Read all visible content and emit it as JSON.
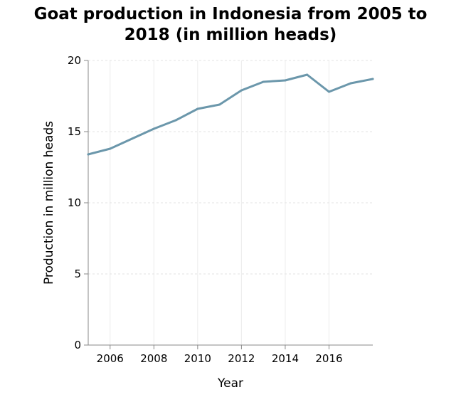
{
  "chart_data": {
    "type": "line",
    "title": "Goat production in Indonesia from 2005 to\n2018 (in million heads)",
    "xlabel": "Year",
    "ylabel": "Production in million heads",
    "x": [
      2005,
      2006,
      2007,
      2008,
      2009,
      2010,
      2011,
      2012,
      2013,
      2014,
      2015,
      2016,
      2017,
      2018
    ],
    "series": [
      {
        "values": [
          13.4,
          13.8,
          14.5,
          15.2,
          15.8,
          16.6,
          16.9,
          17.9,
          18.5,
          18.6,
          19.0,
          17.8,
          18.4,
          18.7
        ]
      }
    ],
    "xlim": [
      2005,
      2018
    ],
    "ylim": [
      0,
      20
    ],
    "xticks": [
      2006,
      2008,
      2010,
      2012,
      2014,
      2016
    ],
    "yticks": [
      0,
      5,
      10,
      15,
      20
    ],
    "grid": true,
    "line_color": "#6b97ab"
  }
}
